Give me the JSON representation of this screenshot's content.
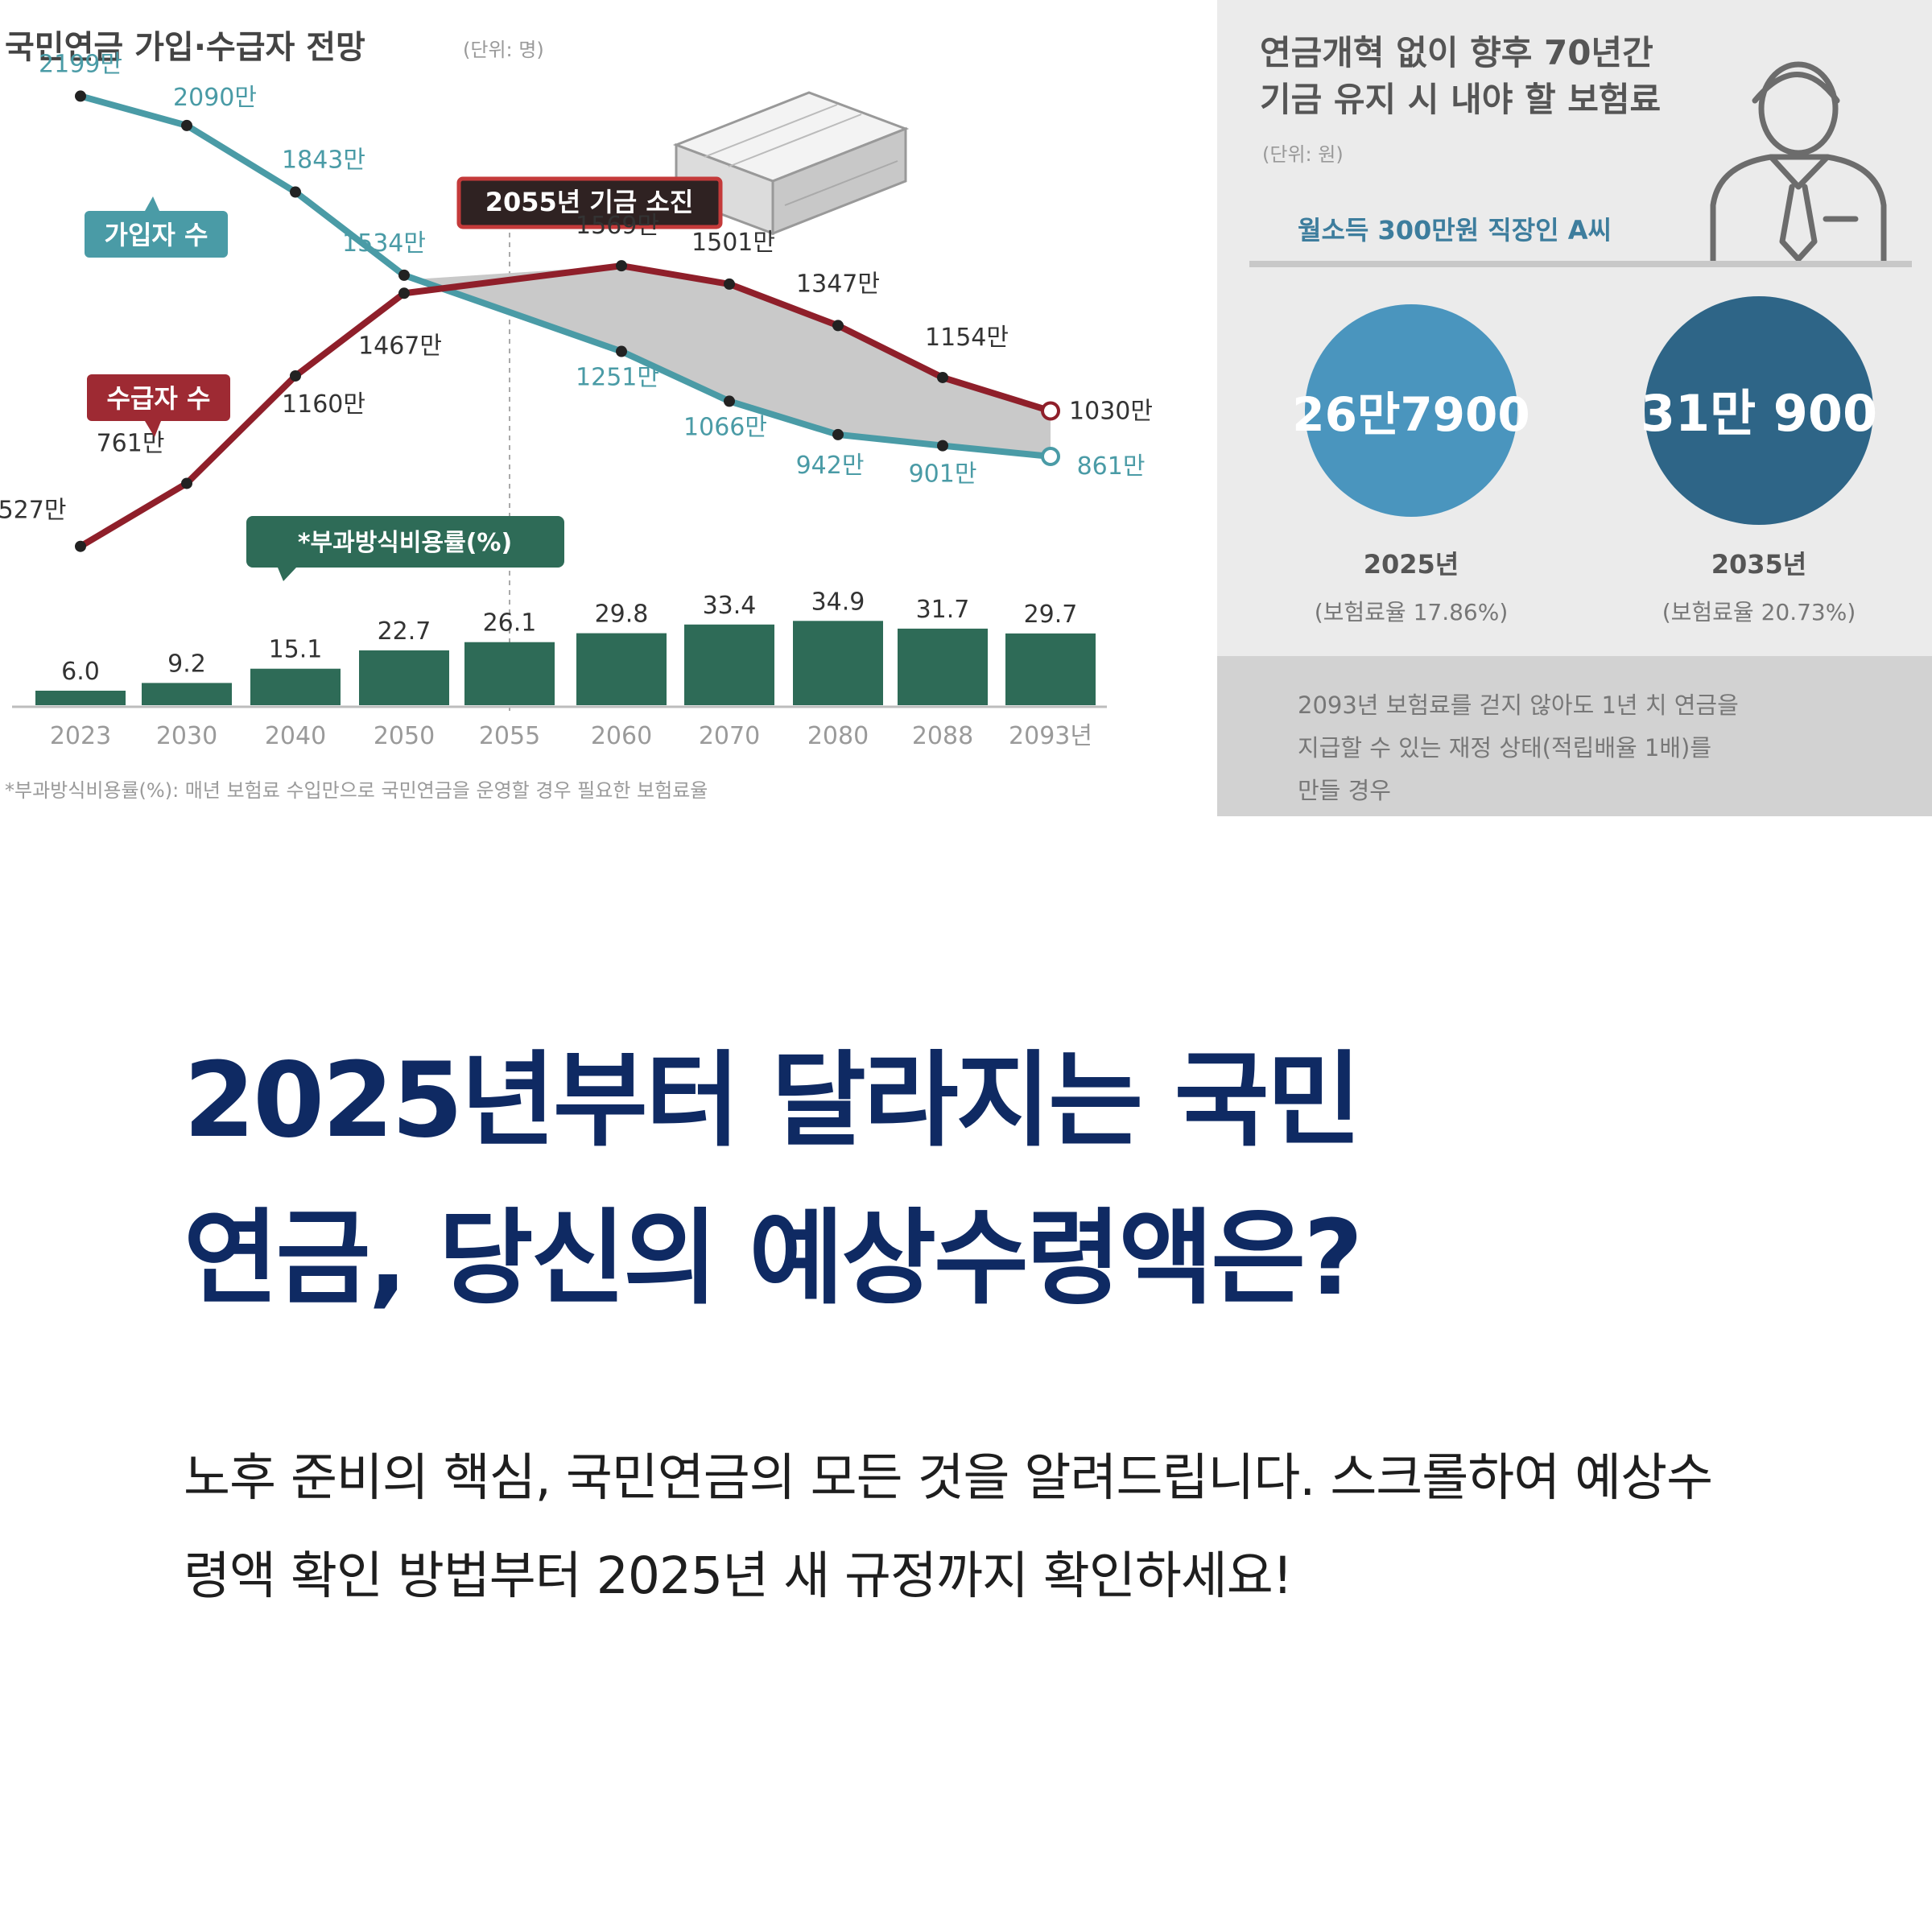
{
  "left_panel": {
    "title": "국민연금 가입·수급자 전망",
    "unit": "(단위: 명)",
    "legend_subscribers": "가입자 수",
    "legend_recipients": "수급자 수",
    "depletion_callout": "2055년 기금 소진",
    "ratio_callout": "*부과방식비용률(%)",
    "footnote": "*부과방식비용률(%): 매년 보험료 수입만으로 국민연금을 운영할 경우 필요한 보험료율"
  },
  "right_panel": {
    "title_line1": "연금개혁 없이 향후 70년간",
    "title_line2": "기금 유지 시 내야 할 보험료",
    "unit": "(단위: 원)",
    "subtitle": "월소득 300만원 직장인 A씨",
    "circle1_main": "26만7900",
    "circle1_year": "2025년",
    "circle1_note": "(보험료율 17.86%)",
    "circle2_main": "31만 900",
    "circle2_year": "2035년",
    "circle2_note": "(보험료율 20.73%)",
    "footer_line1": "2093년 보험료를 걷지 않아도 1년 치 연금을",
    "footer_line2": "지급할 수 있는 재정 상태(적립배율 1배)를",
    "footer_line3": "만들 경우"
  },
  "chart_data": [
    {
      "type": "line",
      "title": "국민연금 가입·수급자 전망",
      "unit": "(단위: 명)",
      "x": [
        "2023",
        "2030",
        "2040",
        "2050",
        "2055",
        "2060",
        "2070",
        "2080",
        "2088",
        "2093년"
      ],
      "series": [
        {
          "name": "가입자 수",
          "color": "#4a9ba6",
          "values": [
            2199,
            2090,
            1843,
            1534,
            null,
            1251,
            1066,
            942,
            901,
            861
          ],
          "labels": [
            "2199만",
            "2090만",
            "1843만",
            "1534만",
            null,
            "1251만",
            "1066만",
            "942만",
            "901만",
            "861만"
          ]
        },
        {
          "name": "수급자 수",
          "color": "#8f1f2a",
          "values": [
            527,
            761,
            1160,
            1467,
            null,
            1569,
            1501,
            1347,
            1154,
            1030
          ],
          "labels": [
            "527만",
            "761만",
            "1160만",
            "1467만",
            null,
            "1569만",
            "1501만",
            "1347만",
            "1154만",
            "1030만"
          ]
        }
      ],
      "annotations": [
        "2055년 기금 소진"
      ]
    },
    {
      "type": "bar",
      "title": "*부과방식비용률(%)",
      "categories": [
        "2023",
        "2030",
        "2040",
        "2050",
        "2055",
        "2060",
        "2070",
        "2080",
        "2088",
        "2093년"
      ],
      "values": [
        6.0,
        9.2,
        15.1,
        22.7,
        26.1,
        29.8,
        33.4,
        34.9,
        31.7,
        29.7
      ],
      "labels": [
        "6.0",
        "9.2",
        "15.1",
        "22.7",
        "26.1",
        "29.8",
        "33.4",
        "34.9",
        "31.7",
        "29.7"
      ],
      "color": "#2e6b57"
    }
  ],
  "headline_line1": "2025년부터 달라지는 국민",
  "headline_line2": "연금, 당신의 예상수령액은?",
  "intro_text": "노후 준비의 핵심, 국민연금의 모든 것을 알려드립니다. 스크롤하여 예상수령액 확인 방법부터 2025년 새 규정까지 확인하세요!"
}
